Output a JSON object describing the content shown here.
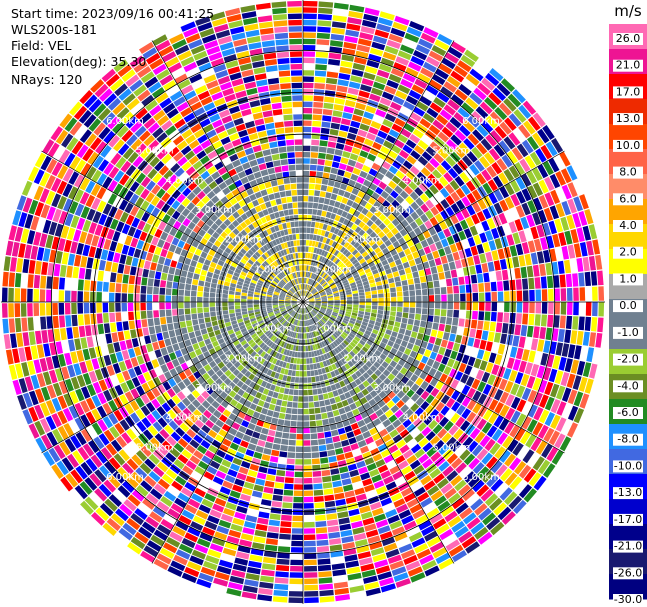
{
  "header": {
    "start_time": "Start time: 2023/09/16 00:41:25",
    "instrument": "WLS200s-181",
    "field": "Field: VEL",
    "elevation": "Elevation(deg): 35.30",
    "nrays": "NRays: 120"
  },
  "colorbar": {
    "unit": "m/s",
    "ticks": [
      "26.0",
      "21.0",
      "17.0",
      "13.0",
      "10.0",
      "8.0",
      "6.0",
      "4.0",
      "2.0",
      "1.0",
      "0.0",
      "-1.0",
      "-2.0",
      "-4.0",
      "-6.0",
      "-8.0",
      "-10.0",
      "-13.0",
      "-17.0",
      "-21.0",
      "-26.0",
      "-30.0"
    ],
    "colors": [
      "#ff69b4",
      "#ee1493",
      "#ff0000",
      "#ee2a00",
      "#ff4500",
      "#ff6347",
      "#ff8c69",
      "#ffa500",
      "#ffd700",
      "#ffff00",
      "#a9a9a9",
      "#708090",
      "#708090",
      "#9acd32",
      "#6b8e23",
      "#228b22",
      "#1e90ff",
      "#4169e1",
      "#0000ff",
      "#0000cd",
      "#00008b",
      "#191970",
      "#000080"
    ]
  },
  "range_labels": [
    "1.00km",
    "2.00km",
    "3.00km",
    "4.00km",
    "5.00km",
    "6.00km"
  ],
  "chart_data": {
    "type": "ppi",
    "field": "VEL",
    "units": "m/s",
    "vmin": -30.0,
    "vmax": 26.0,
    "nrays": 120,
    "range_rings_km": [
      1,
      2,
      3,
      4,
      5,
      6
    ],
    "max_range_km": 7.2,
    "note_colorbar_ticks": [
      26.0,
      21.0,
      17.0,
      13.0,
      10.0,
      8.0,
      6.0,
      4.0,
      2.0,
      1.0,
      0.0,
      -1.0,
      -2.0,
      -4.0,
      -6.0,
      -8.0,
      -10.0,
      -13.0,
      -17.0,
      -21.0,
      -26.0,
      -30.0
    ]
  }
}
